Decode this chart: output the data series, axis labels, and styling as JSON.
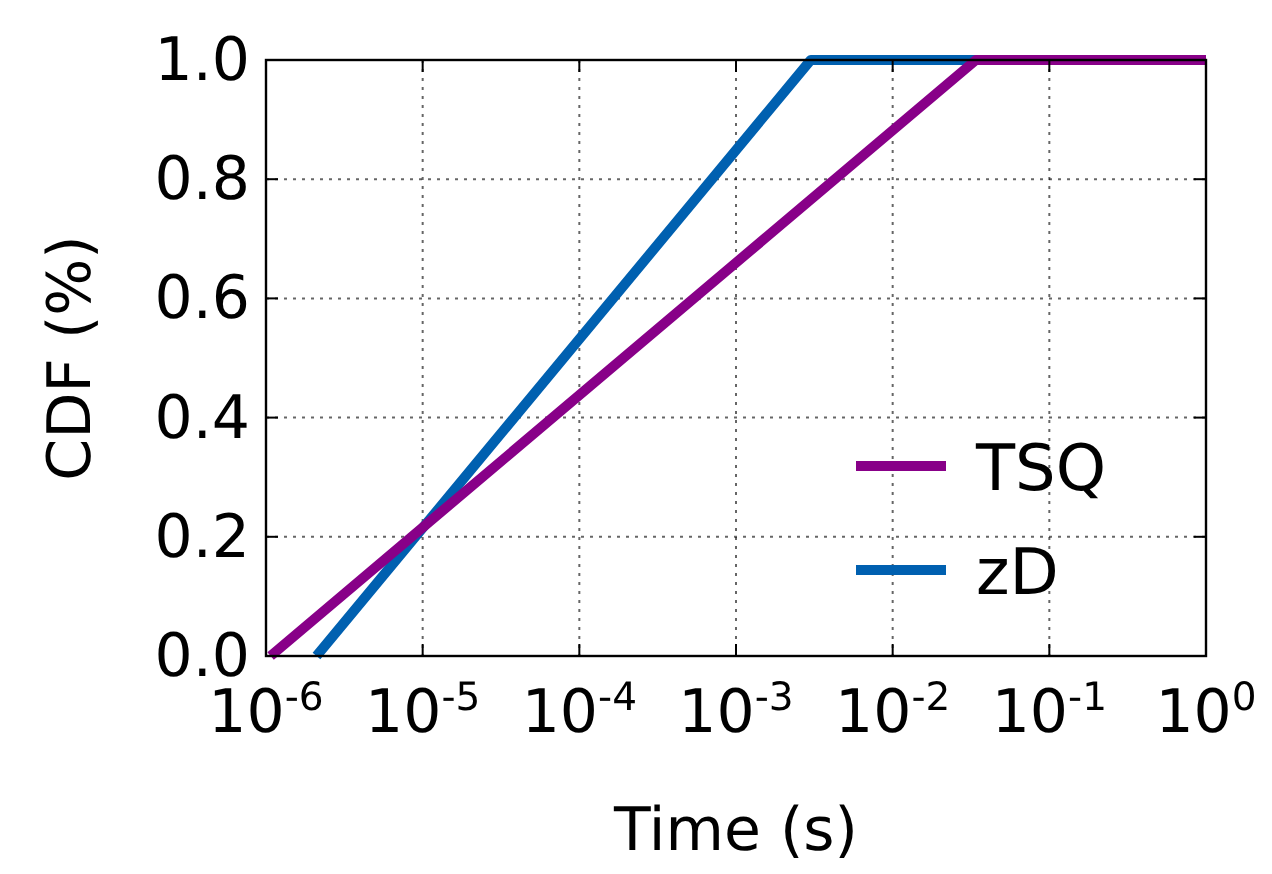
{
  "chart_data": {
    "type": "line",
    "xlabel": "Time (s)",
    "ylabel": "CDF (%)",
    "log": "x",
    "series": [
      {
        "name": "TSQ",
        "color": "#880088",
        "x": [
          1.07e-06,
          0.034,
          1
        ],
        "values": [
          0,
          1,
          1
        ]
      },
      {
        "name": "zD",
        "color": "#0060b0",
        "x": [
          2.1e-06,
          0.003,
          0.034
        ],
        "values": [
          0,
          1,
          1
        ]
      }
    ],
    "xlim": [
      1e-06,
      1
    ],
    "xticks": [
      {
        "value": 1e-06,
        "label": "10$^{-6}$"
      },
      {
        "value": 1e-05,
        "label": "10$^{-5}$"
      },
      {
        "value": 0.0001,
        "label": "10$^{-4}$"
      },
      {
        "value": 0.001,
        "label": "10$^{-3}$"
      },
      {
        "value": 0.01,
        "label": "10$^{-2}$"
      },
      {
        "value": 0.1,
        "label": "10$^{-1}$"
      },
      {
        "value": 1,
        "label": "10$^{0}$"
      }
    ],
    "ylim": [
      0,
      1
    ],
    "yticks": [
      {
        "value": 0,
        "label": "0.0"
      },
      {
        "value": 0.2,
        "label": "0.2"
      },
      {
        "value": 0.4,
        "label": "0.4"
      },
      {
        "value": 0.6,
        "label": "0.6"
      },
      {
        "value": 0.8,
        "label": "0.8"
      },
      {
        "value": 1,
        "label": "1.0"
      }
    ],
    "grid": true,
    "legend": "bottom right",
    "line_style": "solid",
    "marker": "none"
  }
}
